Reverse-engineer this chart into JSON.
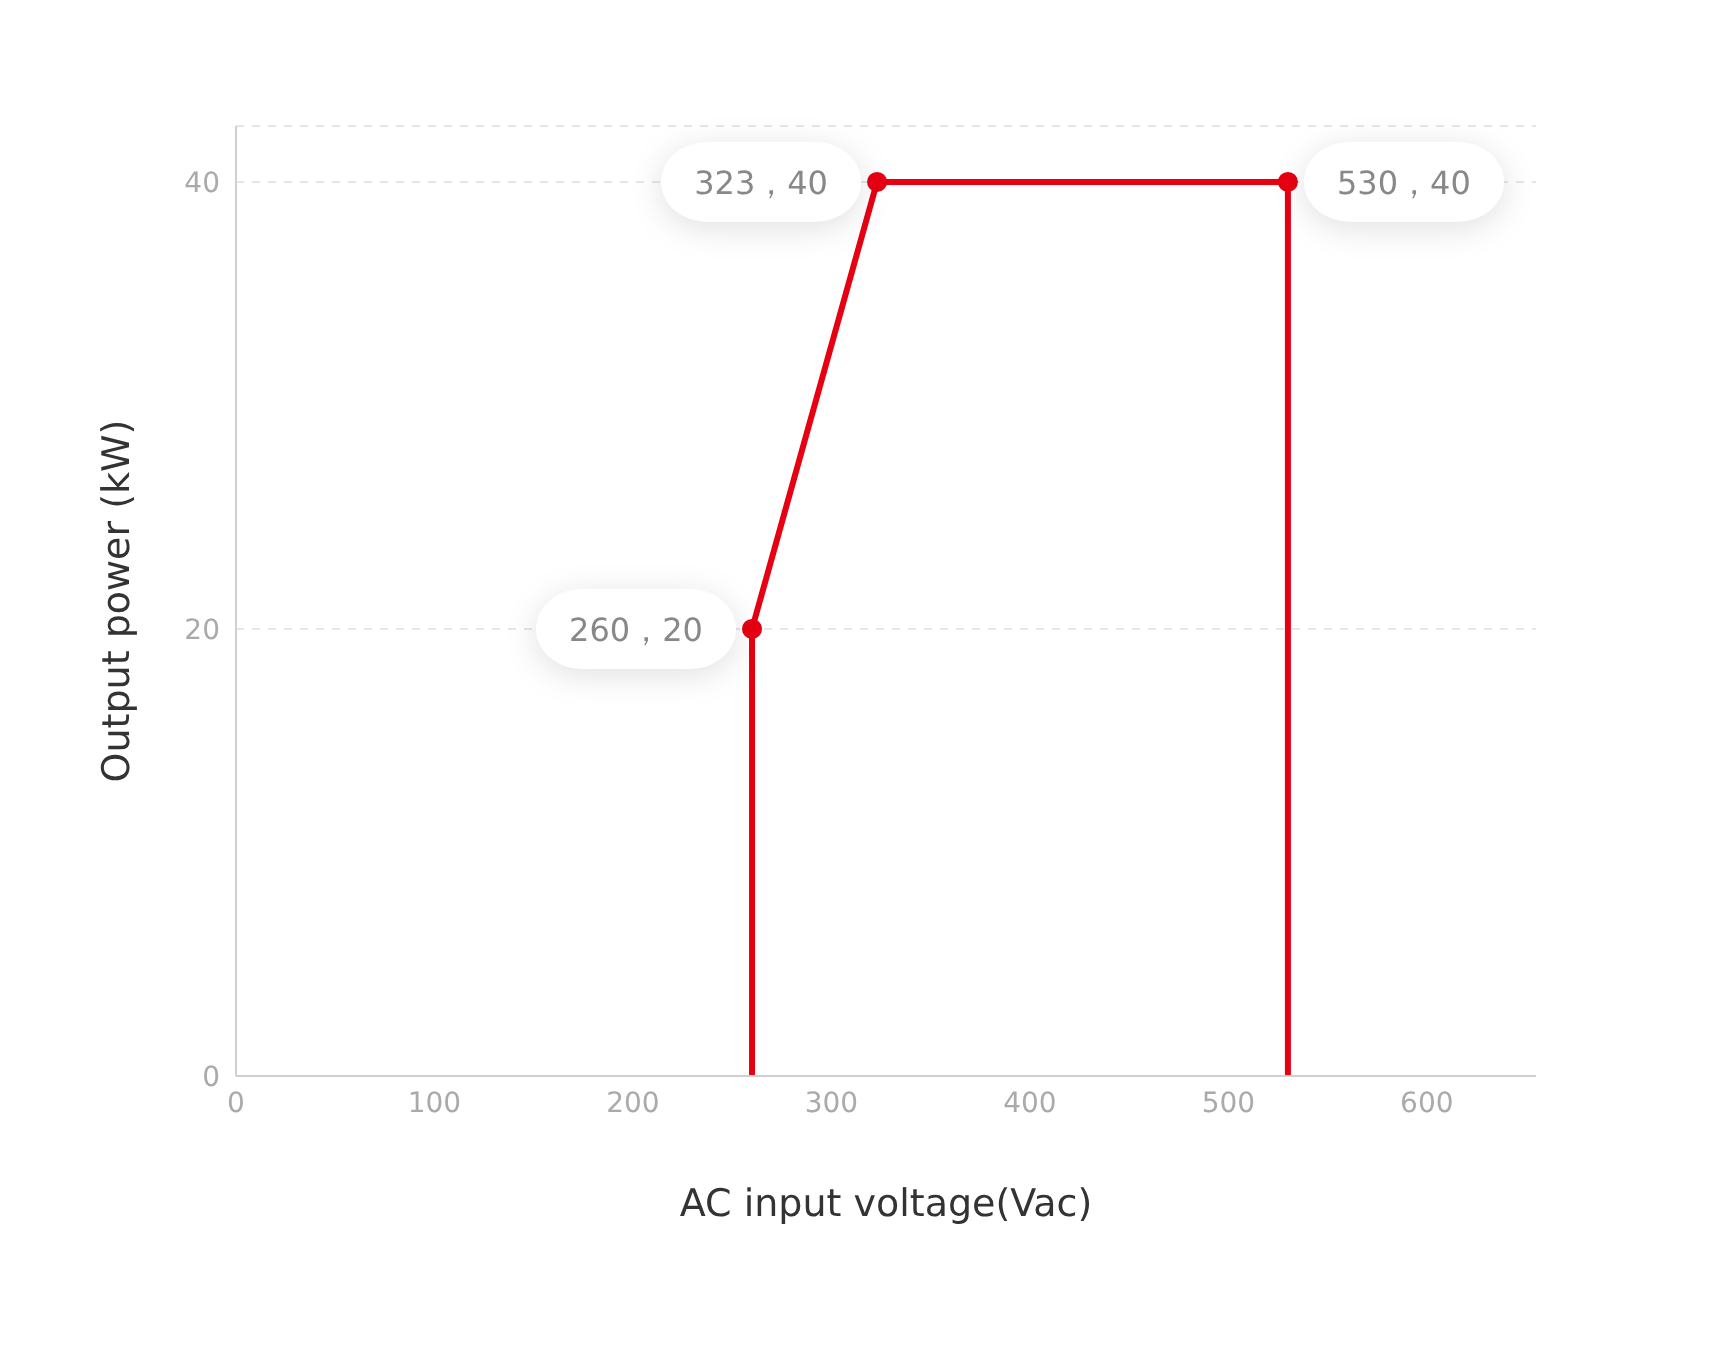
{
  "chart_data": {
    "type": "line",
    "xlabel": "AC input voltage(Vac)",
    "ylabel": "Output power (kW)",
    "x": [
      260,
      260,
      323,
      530,
      530
    ],
    "series": [
      {
        "color": "#e60012",
        "values": [
          0,
          20,
          40,
          40,
          0
        ],
        "value_labels": [
          null,
          "260，20",
          "323，40",
          "530，40",
          null
        ]
      }
    ],
    "xlim": [
      0,
      655
    ],
    "xticks": [
      0,
      100,
      200,
      300,
      400,
      500,
      600
    ],
    "ylim": [
      0,
      42.5
    ],
    "yticks": [
      0,
      20,
      40
    ],
    "grid": "y",
    "marker": "circle",
    "line_style": "solid"
  }
}
